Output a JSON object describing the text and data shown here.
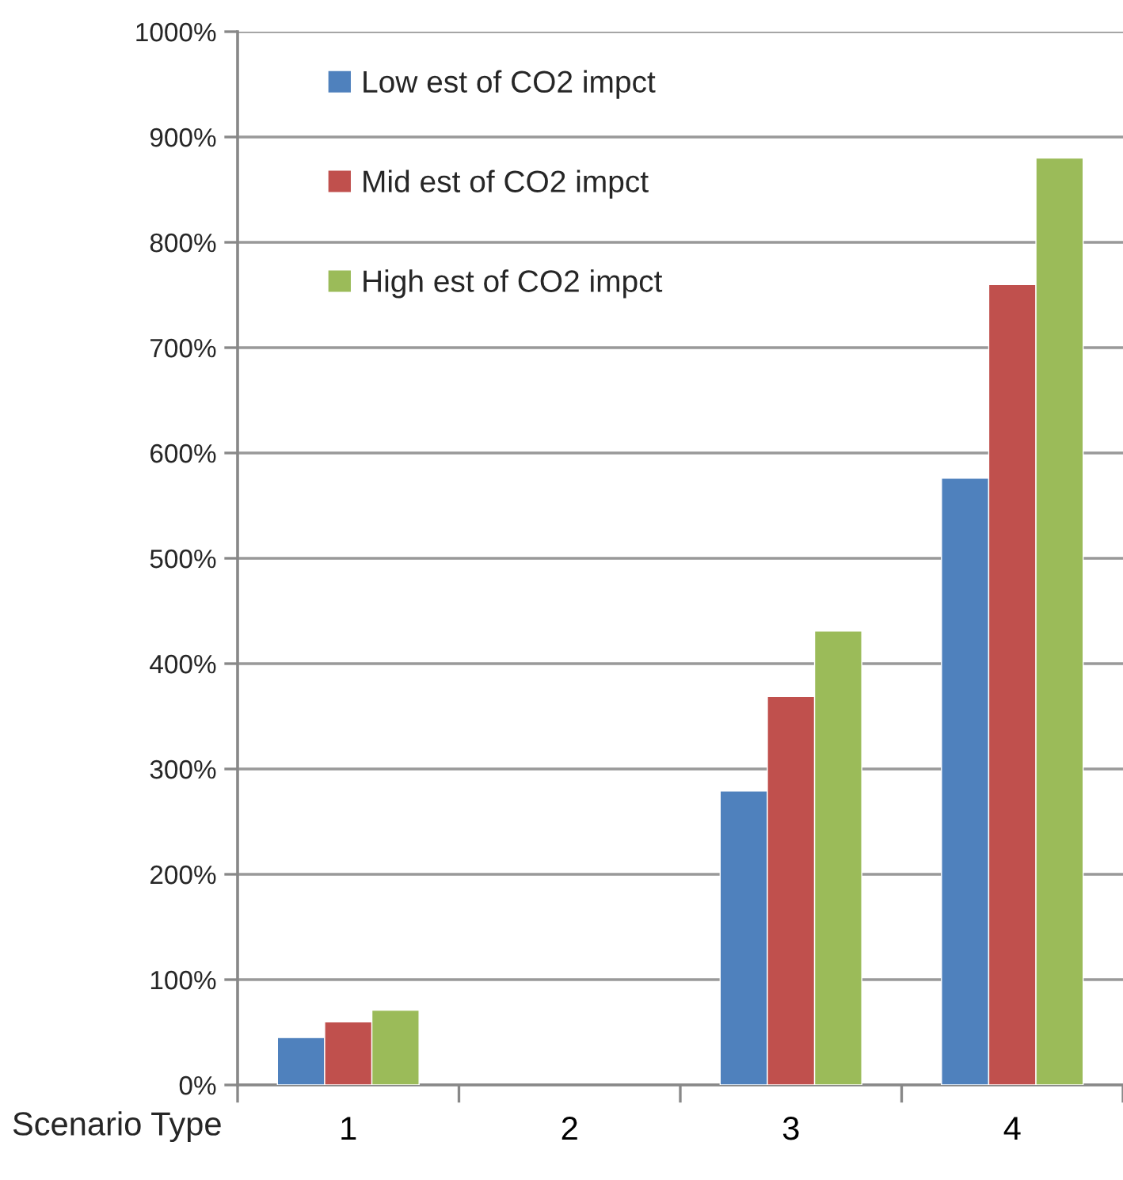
{
  "chart_data": {
    "type": "bar",
    "xlabel": "Scenario Type",
    "categories": [
      "1",
      "2",
      "3",
      "4"
    ],
    "series": [
      {
        "name": "Low est of CO2 impct",
        "color": "#4f81bd",
        "values": [
          45,
          null,
          279,
          576
        ]
      },
      {
        "name": "Mid est of CO2 impct",
        "color": "#c0504d",
        "values": [
          60,
          null,
          369,
          760
        ]
      },
      {
        "name": "High est of CO2 impct",
        "color": "#9bbb59",
        "values": [
          71,
          null,
          431,
          880
        ]
      }
    ],
    "ylim": [
      0,
      1000
    ],
    "yticks": [
      {
        "value": 0,
        "label": "0%"
      },
      {
        "value": 100,
        "label": "100%"
      },
      {
        "value": 200,
        "label": "200%"
      },
      {
        "value": 300,
        "label": "300%"
      },
      {
        "value": 400,
        "label": "400%"
      },
      {
        "value": 500,
        "label": "500%"
      },
      {
        "value": 600,
        "label": "600%"
      },
      {
        "value": 700,
        "label": "700%"
      },
      {
        "value": 800,
        "label": "800%"
      },
      {
        "value": 900,
        "label": "900%"
      },
      {
        "value": 1000,
        "label": "1000%"
      }
    ],
    "grid": "y",
    "legend": "top left"
  }
}
